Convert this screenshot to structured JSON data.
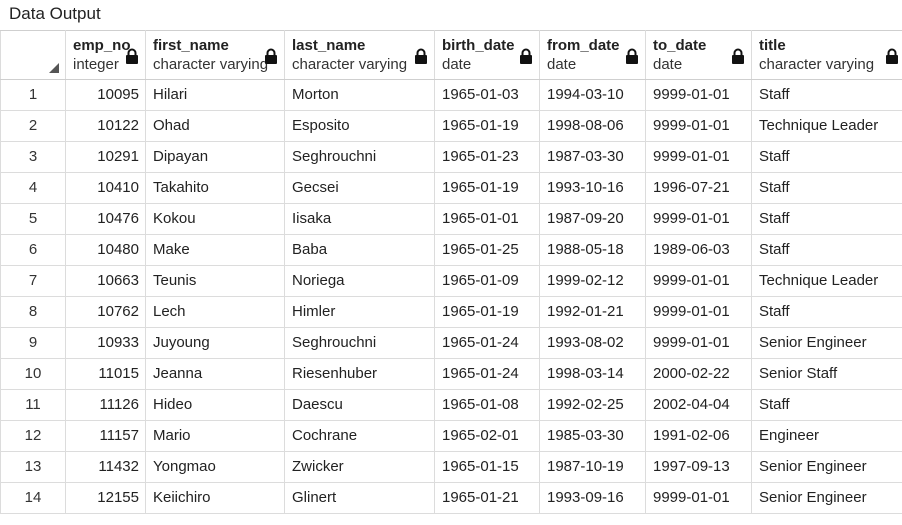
{
  "panel": {
    "title": "Data Output"
  },
  "columns": [
    {
      "name": "emp_no",
      "type": "integer"
    },
    {
      "name": "first_name",
      "type": "character varying"
    },
    {
      "name": "last_name",
      "type": "character varying"
    },
    {
      "name": "birth_date",
      "type": "date"
    },
    {
      "name": "from_date",
      "type": "date"
    },
    {
      "name": "to_date",
      "type": "date"
    },
    {
      "name": "title",
      "type": "character varying"
    }
  ],
  "rows": [
    {
      "n": "1",
      "c": [
        "10095",
        "Hilari",
        "Morton",
        "1965-01-03",
        "1994-03-10",
        "9999-01-01",
        "Staff"
      ]
    },
    {
      "n": "2",
      "c": [
        "10122",
        "Ohad",
        "Esposito",
        "1965-01-19",
        "1998-08-06",
        "9999-01-01",
        "Technique Leader"
      ]
    },
    {
      "n": "3",
      "c": [
        "10291",
        "Dipayan",
        "Seghrouchni",
        "1965-01-23",
        "1987-03-30",
        "9999-01-01",
        "Staff"
      ]
    },
    {
      "n": "4",
      "c": [
        "10410",
        "Takahito",
        "Gecsei",
        "1965-01-19",
        "1993-10-16",
        "1996-07-21",
        "Staff"
      ]
    },
    {
      "n": "5",
      "c": [
        "10476",
        "Kokou",
        "Iisaka",
        "1965-01-01",
        "1987-09-20",
        "9999-01-01",
        "Staff"
      ]
    },
    {
      "n": "6",
      "c": [
        "10480",
        "Make",
        "Baba",
        "1965-01-25",
        "1988-05-18",
        "1989-06-03",
        "Staff"
      ]
    },
    {
      "n": "7",
      "c": [
        "10663",
        "Teunis",
        "Noriega",
        "1965-01-09",
        "1999-02-12",
        "9999-01-01",
        "Technique Leader"
      ]
    },
    {
      "n": "8",
      "c": [
        "10762",
        "Lech",
        "Himler",
        "1965-01-19",
        "1992-01-21",
        "9999-01-01",
        "Staff"
      ]
    },
    {
      "n": "9",
      "c": [
        "10933",
        "Juyoung",
        "Seghrouchni",
        "1965-01-24",
        "1993-08-02",
        "9999-01-01",
        "Senior Engineer"
      ]
    },
    {
      "n": "10",
      "c": [
        "11015",
        "Jeanna",
        "Riesenhuber",
        "1965-01-24",
        "1998-03-14",
        "2000-02-22",
        "Senior Staff"
      ]
    },
    {
      "n": "11",
      "c": [
        "11126",
        "Hideo",
        "Daescu",
        "1965-01-08",
        "1992-02-25",
        "2002-04-04",
        "Staff"
      ]
    },
    {
      "n": "12",
      "c": [
        "11157",
        "Mario",
        "Cochrane",
        "1965-02-01",
        "1985-03-30",
        "1991-02-06",
        "Engineer"
      ]
    },
    {
      "n": "13",
      "c": [
        "11432",
        "Yongmao",
        "Zwicker",
        "1965-01-15",
        "1987-10-19",
        "1997-09-13",
        "Senior Engineer"
      ]
    },
    {
      "n": "14",
      "c": [
        "12155",
        "Keiichiro",
        "Glinert",
        "1965-01-21",
        "1993-09-16",
        "9999-01-01",
        "Senior Engineer"
      ]
    }
  ]
}
